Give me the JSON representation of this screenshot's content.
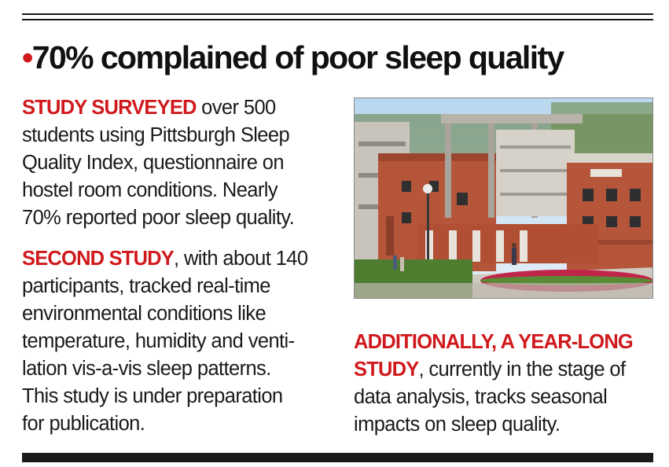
{
  "headline": {
    "bullet": "•",
    "text": "70% complained of poor sleep quality"
  },
  "paragraph1": {
    "lead": "STUDY SURVEYED",
    "lines": [
      " over 500",
      "students using Pittsburgh Sleep",
      "Quality Index, questionnaire on",
      "hostel room conditions. Nearly",
      "70% reported poor sleep quality."
    ]
  },
  "paragraph2": {
    "lead": "SECOND STUDY",
    "lines": [
      ", with about 140",
      "participants, tracked real-time",
      "environmental conditions like",
      "temperature, humidity and venti-",
      "lation vis-a-vis sleep patterns.",
      "This study is under preparation",
      "for publication."
    ]
  },
  "paragraph3": {
    "lead_line1": "ADDITIONALLY, A YEAR-LONG",
    "lead_line2": "STUDY",
    "lines": [
      ", currently in the stage of",
      "data analysis, tracks seasonal",
      "impacts on sleep quality."
    ]
  },
  "photo": {
    "subject": "campus-hostel-building-photo",
    "colors": {
      "sky": "#cfe4f4",
      "brick": "#b5563a",
      "concrete": "#c9c4bb",
      "lawn": "#4f7d2f",
      "flowers": "#c0254a"
    }
  },
  "colors": {
    "accent": "#d0191c",
    "text": "#1a1a1a"
  }
}
